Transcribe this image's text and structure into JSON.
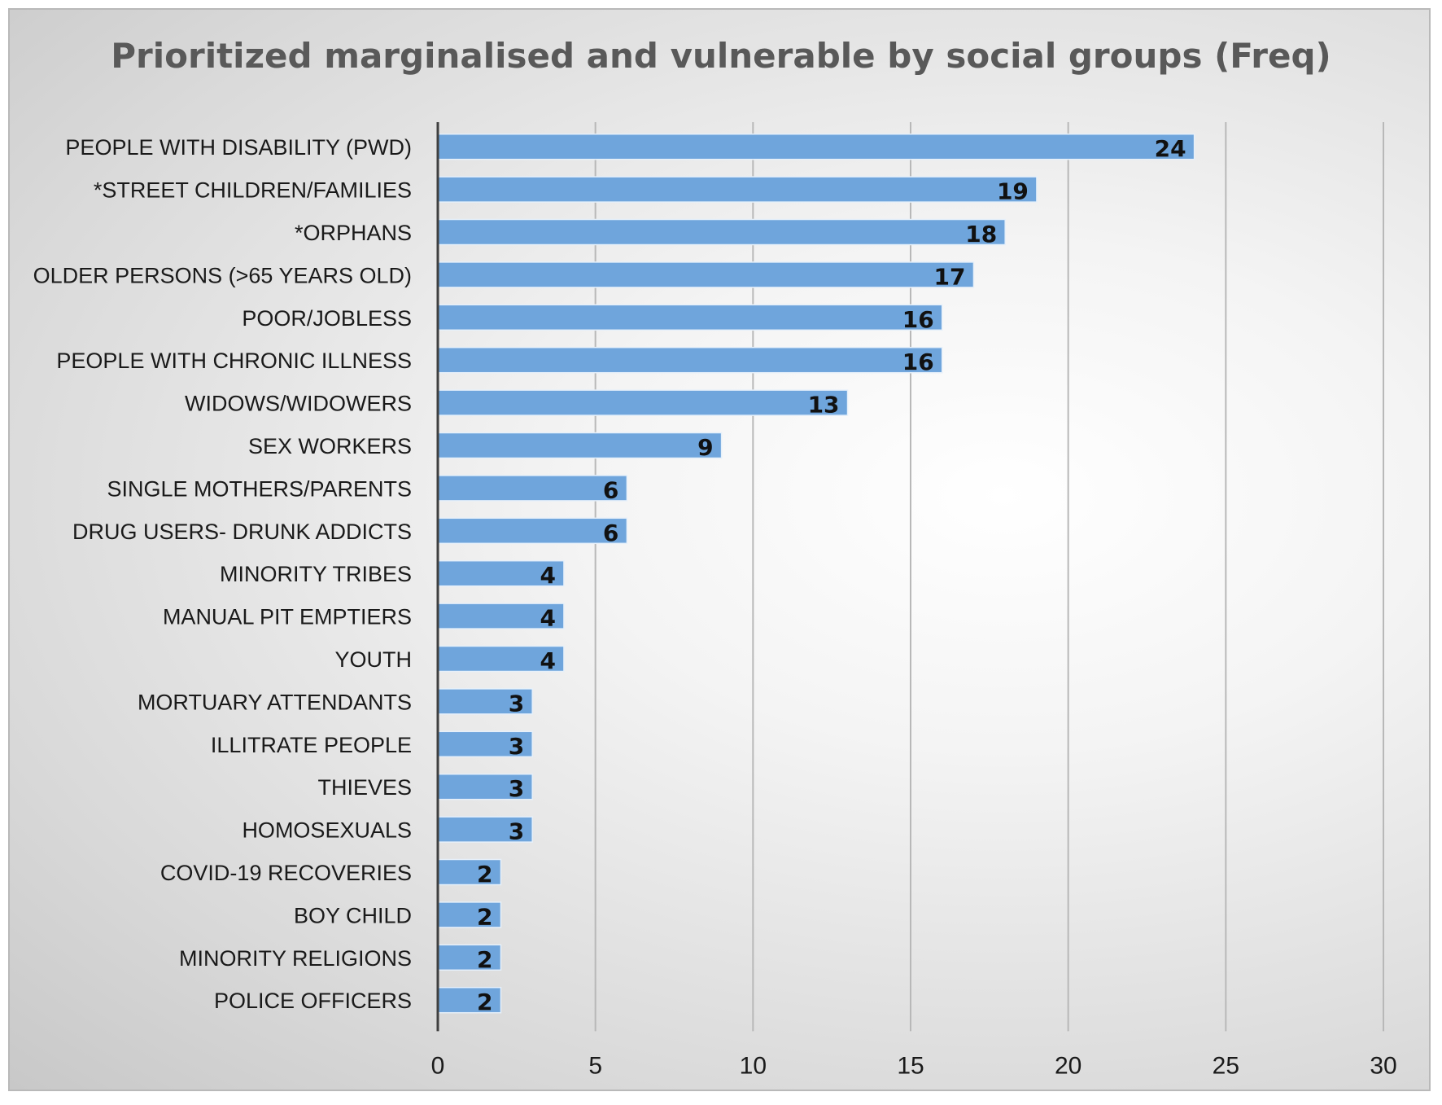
{
  "chart_data": {
    "type": "bar",
    "orientation": "horizontal",
    "title": "Prioritized marginalised and vulnerable by social groups (Freq)",
    "categories": [
      "PEOPLE WITH DISABILITY (PWD)",
      "*STREET CHILDREN/FAMILIES",
      "*ORPHANS",
      "OLDER PERSONS (>65 YEARS OLD)",
      "POOR/JOBLESS",
      "PEOPLE WITH CHRONIC ILLNESS",
      "WIDOWS/WIDOWERS",
      "SEX WORKERS",
      "SINGLE MOTHERS/PARENTS",
      "DRUG USERS- DRUNK ADDICTS",
      "MINORITY TRIBES",
      "MANUAL PIT EMPTIERS",
      "YOUTH",
      "MORTUARY ATTENDANTS",
      "ILLITRATE PEOPLE",
      "THIEVES",
      "HOMOSEXUALS",
      "COVID-19 RECOVERIES",
      "BOY CHILD",
      "MINORITY RELIGIONS",
      "POLICE OFFICERS"
    ],
    "values": [
      24,
      19,
      18,
      17,
      16,
      16,
      13,
      9,
      6,
      6,
      4,
      4,
      4,
      3,
      3,
      3,
      3,
      2,
      2,
      2,
      2
    ],
    "xlim": [
      0,
      30
    ],
    "xticks": [
      0,
      5,
      10,
      15,
      20,
      25,
      30
    ],
    "grid": true,
    "legend": "none",
    "bar_color": "#6fa5dc",
    "axis_color": "#404040",
    "grid_color": "#b8b8b8"
  }
}
